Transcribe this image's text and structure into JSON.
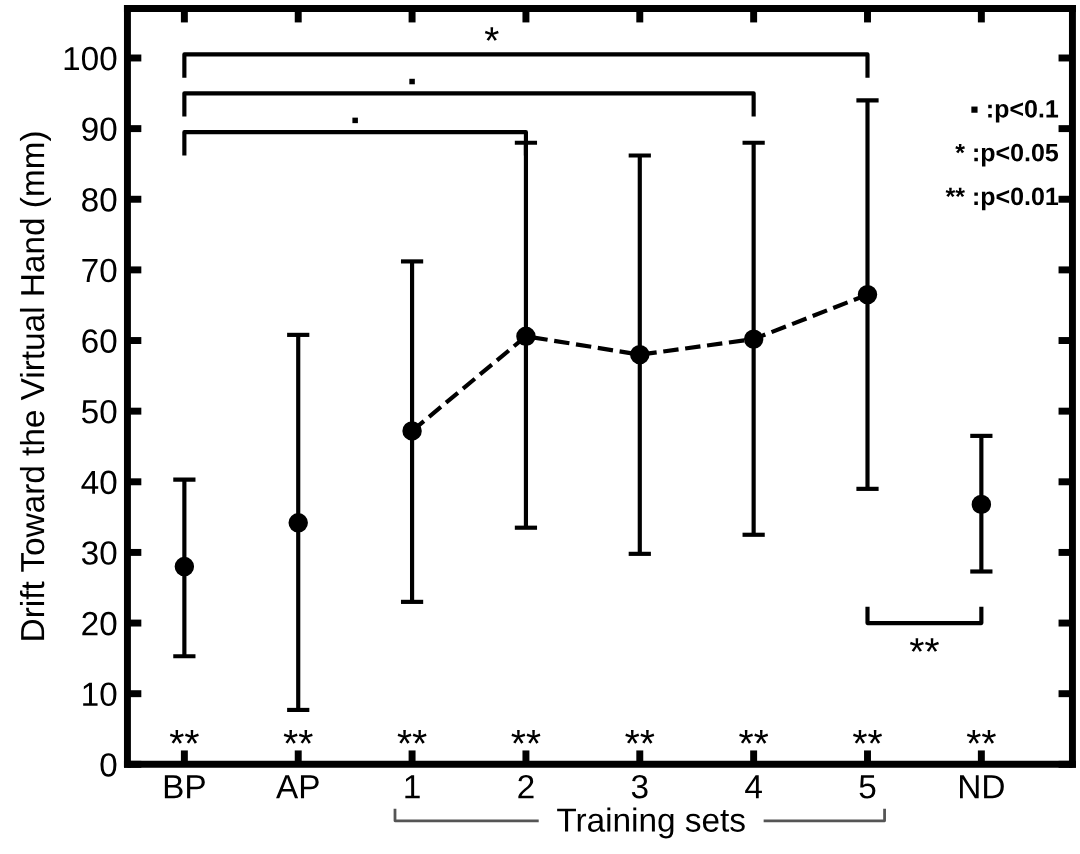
{
  "chart_data": {
    "type": "scatter",
    "ylabel": "Drift Toward the Virtual Hand (mm)",
    "categories": [
      "BP",
      "AP",
      "1",
      "2",
      "3",
      "4",
      "5",
      "ND"
    ],
    "ylim": [
      0,
      107
    ],
    "yticks": [
      0,
      10,
      20,
      30,
      40,
      50,
      60,
      70,
      80,
      90,
      100
    ],
    "grid": false,
    "series": [
      {
        "color": "#000000",
        "marker": "circle",
        "values": [
          28.0,
          34.2,
          47.2,
          60.6,
          58.0,
          60.2,
          66.5,
          36.8
        ],
        "errors": [
          [
            15.3,
            40.3
          ],
          [
            7.7,
            60.8
          ],
          [
            23.0,
            71.2
          ],
          [
            33.5,
            88.0
          ],
          [
            29.8,
            86.2
          ],
          [
            32.5,
            88.0
          ],
          [
            39.0,
            94.0
          ],
          [
            27.3,
            46.5
          ]
        ]
      },
      {
        "type": "line",
        "color": "#000000",
        "marker": "none",
        "line_style": "dashed",
        "values": [
          null,
          null,
          47.2,
          60.6,
          58.0,
          60.2,
          66.5,
          null
        ]
      }
    ],
    "annotations": [
      "*",
      "▪",
      "▪",
      "**",
      "▪ :p<0.1",
      "* :p<0.05",
      "** :p<0.01",
      "Training sets",
      "**",
      "**",
      "**",
      "**",
      "**",
      "**",
      "**",
      "**"
    ]
  }
}
